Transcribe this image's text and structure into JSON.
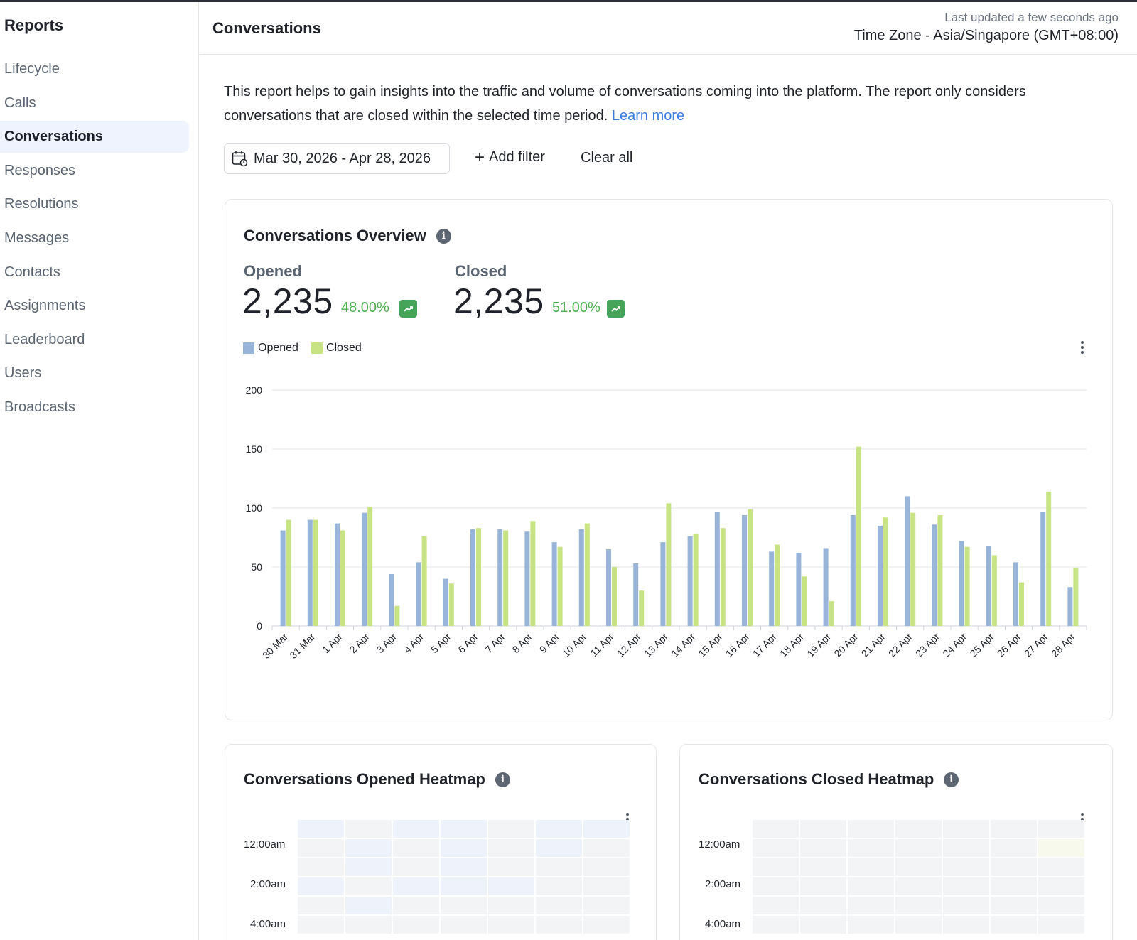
{
  "sidebar": {
    "title": "Reports",
    "items": [
      {
        "label": "Lifecycle"
      },
      {
        "label": "Calls"
      },
      {
        "label": "Conversations",
        "active": true
      },
      {
        "label": "Responses"
      },
      {
        "label": "Resolutions"
      },
      {
        "label": "Messages"
      },
      {
        "label": "Contacts"
      },
      {
        "label": "Assignments"
      },
      {
        "label": "Leaderboard"
      },
      {
        "label": "Users"
      },
      {
        "label": "Broadcasts"
      }
    ]
  },
  "header": {
    "title": "Conversations",
    "last_updated": "Last updated a few seconds ago",
    "timezone": "Time Zone - Asia/Singapore (GMT+08:00)"
  },
  "description": {
    "text": "This report helps to gain insights into the traffic and volume of conversations coming into the platform. The report only considers conversations that are closed within the selected time period.",
    "link": "Learn more"
  },
  "filters": {
    "date_range": "Mar 30, 2026 - Apr 28, 2026",
    "add_filter": "Add filter",
    "clear_all": "Clear all"
  },
  "overview": {
    "title": "Conversations Overview",
    "opened": {
      "label": "Opened",
      "value": "2,235",
      "pct": "48.00%"
    },
    "closed": {
      "label": "Closed",
      "value": "2,235",
      "pct": "51.00%"
    },
    "legend": [
      {
        "label": "Opened",
        "color": "#98b4d8"
      },
      {
        "label": "Closed",
        "color": "#c7e384"
      }
    ]
  },
  "chart_data": {
    "type": "bar",
    "categories": [
      "30 Mar",
      "31 Mar",
      "1 Apr",
      "2 Apr",
      "3 Apr",
      "4 Apr",
      "5 Apr",
      "6 Apr",
      "7 Apr",
      "8 Apr",
      "9 Apr",
      "10 Apr",
      "11 Apr",
      "12 Apr",
      "13 Apr",
      "14 Apr",
      "15 Apr",
      "16 Apr",
      "17 Apr",
      "18 Apr",
      "19 Apr",
      "20 Apr",
      "21 Apr",
      "22 Apr",
      "23 Apr",
      "24 Apr",
      "25 Apr",
      "26 Apr",
      "27 Apr",
      "28 Apr"
    ],
    "series": [
      {
        "name": "Opened",
        "color": "#98b4d8",
        "values": [
          81,
          90,
          87,
          96,
          44,
          54,
          40,
          82,
          82,
          80,
          71,
          82,
          65,
          53,
          71,
          76,
          97,
          94,
          63,
          62,
          66,
          94,
          85,
          110,
          86,
          72,
          68,
          54,
          97,
          33
        ]
      },
      {
        "name": "Closed",
        "color": "#c7e384",
        "values": [
          90,
          90,
          81,
          101,
          17,
          76,
          36,
          83,
          81,
          89,
          67,
          87,
          50,
          30,
          104,
          78,
          83,
          99,
          69,
          42,
          21,
          152,
          92,
          96,
          94,
          67,
          60,
          37,
          114,
          49
        ]
      }
    ],
    "ylim": [
      0,
      200
    ],
    "yticks": [
      0,
      50,
      100,
      150,
      200
    ],
    "xlabel": "",
    "ylabel": "",
    "grid": true,
    "legend_position": "top-left"
  },
  "heatmaps": {
    "opened": {
      "title": "Conversations Opened Heatmap",
      "row_labels": [
        "12:00am",
        "2:00am",
        "4:00am"
      ],
      "base_color": "#f3f4f5",
      "tint_color": "#eef3fb"
    },
    "closed": {
      "title": "Conversations Closed Heatmap",
      "row_labels": [
        "12:00am",
        "2:00am",
        "4:00am"
      ],
      "base_color": "#f3f4f5",
      "tint_color": "#f6f9ec"
    }
  }
}
